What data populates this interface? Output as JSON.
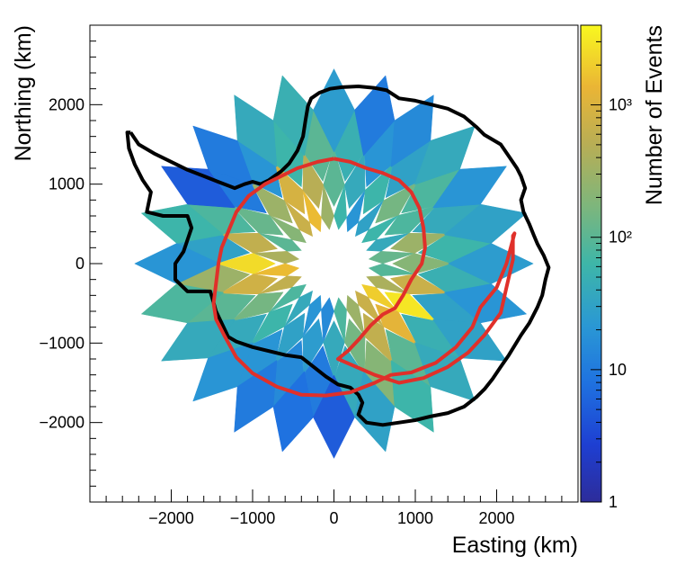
{
  "chart_data": {
    "type": "heatmap",
    "xlabel": "Easting (km)",
    "ylabel": "Northing (km)",
    "colorbar_label": "Number of Events",
    "xlim": [
      -3000,
      3000
    ],
    "ylim": [
      -3000,
      3000
    ],
    "colorbar_range": [
      1,
      4000
    ],
    "colorbar_scale": "log",
    "x_ticks": [
      {
        "value": -2000,
        "label": "−2000"
      },
      {
        "value": -1000,
        "label": "−1000"
      },
      {
        "value": 0,
        "label": "0"
      },
      {
        "value": 1000,
        "label": "1000"
      },
      {
        "value": 2000,
        "label": "2000"
      }
    ],
    "y_ticks": [
      {
        "value": 2000,
        "label": "2000"
      },
      {
        "value": 1000,
        "label": "1000"
      },
      {
        "value": 0,
        "label": "0"
      },
      {
        "value": -1000,
        "label": "−1000"
      },
      {
        "value": -2000,
        "label": "−2000"
      }
    ],
    "colorbar_ticks": [
      {
        "value": 1,
        "label": "1"
      },
      {
        "value": 10,
        "label": "10"
      },
      {
        "value": 100,
        "label": "10²"
      },
      {
        "value": 1000,
        "label": "10³"
      }
    ],
    "coastline_color": "#000000",
    "boundary_color": "#e0302a",
    "coastline": [
      [
        -2500,
        1650
      ],
      [
        -2400,
        1500
      ],
      [
        -2200,
        1380
      ],
      [
        -2000,
        1280
      ],
      [
        -1800,
        1180
      ],
      [
        -1600,
        1100
      ],
      [
        -1400,
        1020
      ],
      [
        -1220,
        950
      ],
      [
        -1100,
        1000
      ],
      [
        -1000,
        1030
      ],
      [
        -900,
        1000
      ],
      [
        -800,
        1050
      ],
      [
        -650,
        1160
      ],
      [
        -550,
        1260
      ],
      [
        -450,
        1420
      ],
      [
        -380,
        1600
      ],
      [
        -350,
        1800
      ],
      [
        -320,
        1980
      ],
      [
        -280,
        2080
      ],
      [
        -180,
        2150
      ],
      [
        -50,
        2200
      ],
      [
        100,
        2220
      ],
      [
        300,
        2230
      ],
      [
        500,
        2210
      ],
      [
        650,
        2180
      ],
      [
        800,
        2080
      ],
      [
        1000,
        2050
      ],
      [
        1200,
        2000
      ],
      [
        1400,
        1950
      ],
      [
        1600,
        1850
      ],
      [
        1750,
        1720
      ],
      [
        1850,
        1620
      ],
      [
        2050,
        1500
      ],
      [
        2150,
        1350
      ],
      [
        2250,
        1200
      ],
      [
        2300,
        1100
      ],
      [
        2350,
        950
      ],
      [
        2300,
        800
      ],
      [
        2330,
        650
      ],
      [
        2400,
        500
      ],
      [
        2460,
        350
      ],
      [
        2500,
        250
      ],
      [
        2580,
        100
      ],
      [
        2640,
        -50
      ],
      [
        2600,
        -200
      ],
      [
        2560,
        -400
      ],
      [
        2500,
        -550
      ],
      [
        2400,
        -750
      ],
      [
        2300,
        -900
      ],
      [
        2150,
        -1150
      ],
      [
        2050,
        -1300
      ],
      [
        1950,
        -1450
      ],
      [
        1850,
        -1580
      ],
      [
        1750,
        -1680
      ],
      [
        1600,
        -1800
      ],
      [
        1400,
        -1880
      ],
      [
        1200,
        -1920
      ],
      [
        1000,
        -1970
      ],
      [
        800,
        -2000
      ],
      [
        600,
        -2030
      ],
      [
        400,
        -2000
      ],
      [
        300,
        -1900
      ],
      [
        350,
        -1750
      ],
      [
        300,
        -1650
      ],
      [
        200,
        -1560
      ],
      [
        50,
        -1520
      ],
      [
        -100,
        -1420
      ],
      [
        -250,
        -1300
      ],
      [
        -400,
        -1180
      ],
      [
        -600,
        -1150
      ],
      [
        -800,
        -1100
      ],
      [
        -1000,
        -1050
      ],
      [
        -1200,
        -980
      ],
      [
        -1300,
        -920
      ],
      [
        -1450,
        -600
      ],
      [
        -1500,
        -420
      ],
      [
        -1520,
        -350
      ],
      [
        -1800,
        -350
      ],
      [
        -1950,
        -200
      ],
      [
        -1950,
        0
      ],
      [
        -1850,
        150
      ],
      [
        -1800,
        300
      ],
      [
        -1750,
        450
      ],
      [
        -1800,
        600
      ],
      [
        -2100,
        600
      ],
      [
        -2300,
        650
      ],
      [
        -2250,
        900
      ],
      [
        -2350,
        1050
      ],
      [
        -2450,
        1250
      ],
      [
        -2520,
        1450
      ],
      [
        -2540,
        1650
      ],
      [
        -2500,
        1650
      ]
    ],
    "boundary": [
      [
        0,
        1320
      ],
      [
        200,
        1280
      ],
      [
        400,
        1200
      ],
      [
        600,
        1140
      ],
      [
        800,
        1050
      ],
      [
        950,
        900
      ],
      [
        1050,
        700
      ],
      [
        1100,
        450
      ],
      [
        1120,
        200
      ],
      [
        1080,
        0
      ],
      [
        950,
        -200
      ],
      [
        850,
        -400
      ],
      [
        750,
        -560
      ],
      [
        600,
        -640
      ],
      [
        450,
        -780
      ],
      [
        300,
        -960
      ],
      [
        170,
        -1100
      ],
      [
        50,
        -1200
      ],
      [
        500,
        -1400
      ],
      [
        800,
        -1500
      ],
      [
        1100,
        -1440
      ],
      [
        1400,
        -1300
      ],
      [
        1650,
        -1120
      ],
      [
        1850,
        -900
      ],
      [
        2050,
        -620
      ],
      [
        2120,
        -300
      ],
      [
        2200,
        50
      ],
      [
        2200,
        350
      ],
      [
        2220,
        380
      ],
      [
        2120,
        0
      ],
      [
        2000,
        -300
      ],
      [
        1800,
        -550
      ],
      [
        1700,
        -800
      ],
      [
        1500,
        -1050
      ],
      [
        1250,
        -1250
      ],
      [
        950,
        -1370
      ],
      [
        700,
        -1400
      ],
      [
        500,
        -1500
      ],
      [
        200,
        -1620
      ],
      [
        -100,
        -1660
      ],
      [
        -400,
        -1650
      ],
      [
        -700,
        -1550
      ],
      [
        -1000,
        -1380
      ],
      [
        -1200,
        -1180
      ],
      [
        -1350,
        -900
      ],
      [
        -1450,
        -700
      ],
      [
        -1480,
        -500
      ],
      [
        -1450,
        -250
      ],
      [
        -1420,
        0
      ],
      [
        -1380,
        200
      ],
      [
        -1300,
        400
      ],
      [
        -1200,
        650
      ],
      [
        -1050,
        850
      ],
      [
        -850,
        1000
      ],
      [
        -650,
        1100
      ],
      [
        -450,
        1200
      ],
      [
        -200,
        1280
      ],
      [
        0,
        1320
      ]
    ],
    "sectors": {
      "count": 24,
      "rings": [
        {
          "r_in": 600,
          "r_out": 1000,
          "values": [
            120,
            40,
            60,
            30,
            20,
            60,
            300,
            1500,
            700,
            200,
            100,
            400,
            1500,
            600,
            80,
            40,
            20,
            15,
            80,
            300,
            700,
            2000,
            400,
            90
          ]
        },
        {
          "r_in": 1000,
          "r_out": 1450,
          "values": [
            300,
            80,
            150,
            60,
            40,
            100,
            500,
            900,
            300,
            120,
            600,
            2500,
            800,
            150,
            60,
            30,
            25,
            40,
            150,
            600,
            1200,
            3000,
            700,
            200
          ]
        },
        {
          "r_in": 1450,
          "r_out": 1950,
          "values": [
            60,
            40,
            80,
            30,
            20,
            50,
            100,
            60,
            20,
            10,
            80,
            30,
            300,
            100,
            40,
            20,
            15,
            10,
            40,
            200,
            100,
            50,
            30,
            50
          ]
        },
        {
          "r_in": 1950,
          "r_out": 2450,
          "values": [
            30,
            20,
            40,
            15,
            10,
            25,
            50,
            40,
            10,
            5,
            60,
            20,
            80,
            40,
            20,
            10,
            8,
            5,
            30,
            60,
            40,
            30,
            20,
            25
          ]
        }
      ]
    }
  }
}
